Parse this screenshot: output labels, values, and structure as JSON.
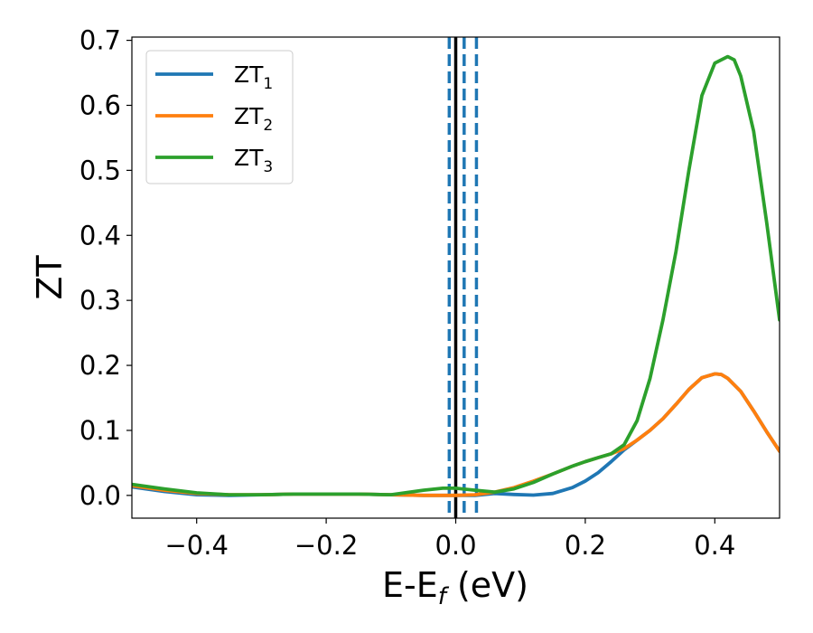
{
  "chart_data": {
    "type": "line",
    "xlabel": "E-E",
    "xlabel_sub": "f",
    "xlabel_unit": " (eV)",
    "ylabel": "ZT",
    "xlim": [
      -0.5,
      0.5
    ],
    "ylim": [
      -0.035,
      0.705
    ],
    "xticks": [
      -0.4,
      -0.2,
      0.0,
      0.2,
      0.4
    ],
    "xtick_labels": [
      "−0.4",
      "−0.2",
      "0.0",
      "0.2",
      "0.4"
    ],
    "yticks": [
      0.0,
      0.1,
      0.2,
      0.3,
      0.4,
      0.5,
      0.6,
      0.7
    ],
    "ytick_labels": [
      "0.0",
      "0.1",
      "0.2",
      "0.3",
      "0.4",
      "0.5",
      "0.6",
      "0.7"
    ],
    "grid": false,
    "legend_position": "top-left",
    "vlines": [
      {
        "x": 0.0,
        "style": "solid",
        "color": "#000000"
      },
      {
        "x": -0.01,
        "style": "dashed",
        "color": "#1f77b4"
      },
      {
        "x": 0.013,
        "style": "dashed",
        "color": "#1f77b4"
      },
      {
        "x": 0.032,
        "style": "dashed",
        "color": "#1f77b4"
      }
    ],
    "series": [
      {
        "name": "ZT",
        "sub": "1",
        "color": "#1f77b4",
        "x": [
          -0.5,
          -0.45,
          -0.4,
          -0.35,
          -0.3,
          -0.25,
          -0.2,
          -0.15,
          -0.1,
          -0.05,
          0.0,
          0.03,
          0.06,
          0.09,
          0.12,
          0.15,
          0.18,
          0.2,
          0.22,
          0.24,
          0.26,
          0.28,
          0.3,
          0.32,
          0.34,
          0.36,
          0.38,
          0.4,
          0.41,
          0.42,
          0.44,
          0.46,
          0.48,
          0.5
        ],
        "y": [
          0.013,
          0.006,
          0.001,
          0.0,
          0.001,
          0.002,
          0.002,
          0.002,
          0.001,
          0.0,
          0.0,
          0.0,
          0.003,
          0.0015,
          0.0005,
          0.003,
          0.012,
          0.022,
          0.035,
          0.052,
          0.07,
          0.085,
          0.1,
          0.118,
          0.14,
          0.163,
          0.181,
          0.187,
          0.186,
          0.18,
          0.16,
          0.13,
          0.098,
          0.068
        ]
      },
      {
        "name": "ZT",
        "sub": "2",
        "color": "#ff7f0e",
        "x": [
          -0.5,
          -0.45,
          -0.4,
          -0.35,
          -0.3,
          -0.25,
          -0.2,
          -0.15,
          -0.1,
          -0.05,
          0.0,
          0.03,
          0.06,
          0.09,
          0.12,
          0.15,
          0.18,
          0.2,
          0.22,
          0.24,
          0.26,
          0.28,
          0.3,
          0.32,
          0.34,
          0.36,
          0.38,
          0.4,
          0.41,
          0.42,
          0.44,
          0.46,
          0.48,
          0.5
        ],
        "y": [
          0.015,
          0.008,
          0.003,
          0.001,
          0.001,
          0.002,
          0.002,
          0.002,
          0.001,
          0.0,
          0.0,
          0.001,
          0.005,
          0.012,
          0.022,
          0.033,
          0.045,
          0.052,
          0.058,
          0.064,
          0.072,
          0.085,
          0.1,
          0.118,
          0.14,
          0.163,
          0.181,
          0.187,
          0.186,
          0.18,
          0.16,
          0.13,
          0.098,
          0.068
        ]
      },
      {
        "name": "ZT",
        "sub": "3",
        "color": "#2ca02c",
        "x": [
          -0.5,
          -0.45,
          -0.4,
          -0.35,
          -0.3,
          -0.25,
          -0.2,
          -0.15,
          -0.1,
          -0.05,
          -0.02,
          0.0,
          0.03,
          0.06,
          0.09,
          0.12,
          0.15,
          0.18,
          0.2,
          0.22,
          0.24,
          0.26,
          0.28,
          0.3,
          0.32,
          0.34,
          0.36,
          0.38,
          0.4,
          0.42,
          0.43,
          0.44,
          0.46,
          0.48,
          0.5
        ],
        "y": [
          0.017,
          0.01,
          0.004,
          0.001,
          0.001,
          0.002,
          0.002,
          0.002,
          0.001,
          0.008,
          0.011,
          0.011,
          0.008,
          0.005,
          0.01,
          0.02,
          0.033,
          0.045,
          0.052,
          0.058,
          0.064,
          0.078,
          0.115,
          0.18,
          0.27,
          0.375,
          0.5,
          0.615,
          0.665,
          0.675,
          0.67,
          0.645,
          0.56,
          0.42,
          0.27
        ]
      }
    ]
  }
}
